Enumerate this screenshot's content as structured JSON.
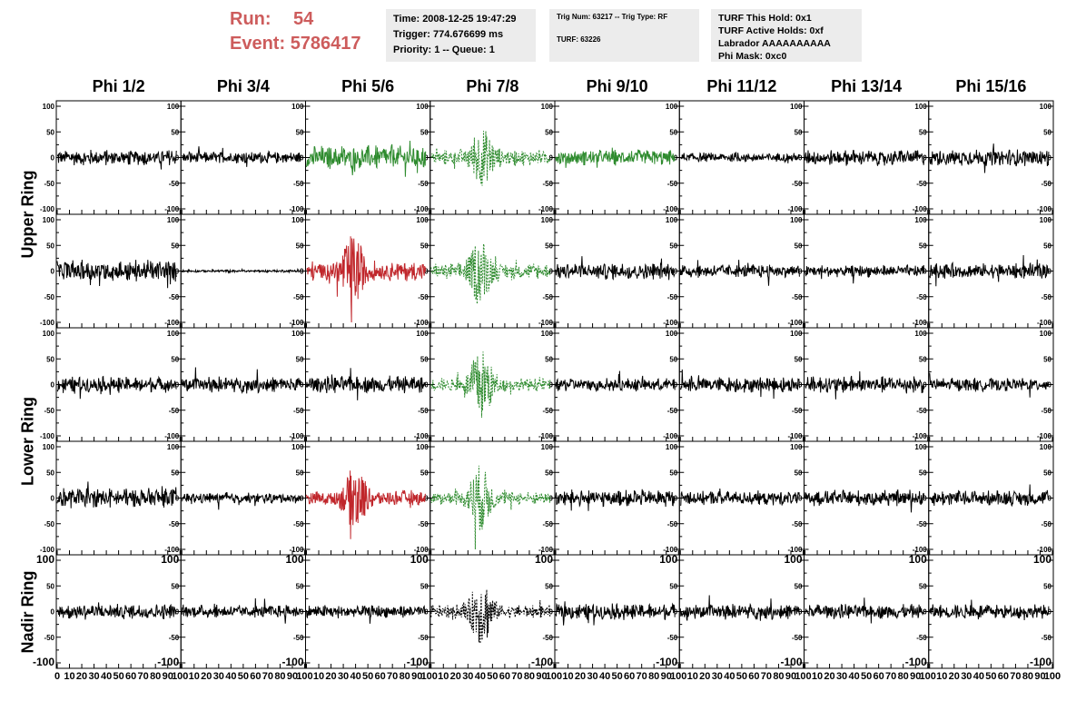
{
  "run": {
    "run_label": "Run:",
    "run_value": "54",
    "event_label": "Event:",
    "event_value": "5786417"
  },
  "info": {
    "time": "Time: 2008-12-25 19:47:29",
    "trigger": "Trigger: 774.676699 ms",
    "priority": "Priority: 1 -- Queue: 1",
    "trig_num": "Trig Num: 63217 -- Trig Type: RF",
    "turf": "TURF: 63226",
    "turf_hold": "TURF This Hold: 0x1",
    "turf_active": "TURF Active Holds: 0xf",
    "labrador": "Labrador AAAAAAAAAA",
    "phi_mask": "Phi Mask: 0xc0"
  },
  "columns": [
    "Phi 1/2",
    "Phi 3/4",
    "Phi 5/6",
    "Phi 7/8",
    "Phi 9/10",
    "Phi 11/12",
    "Phi 13/14",
    "Phi 15/16"
  ],
  "ring_labels": [
    {
      "text": "Upper Ring",
      "rows": [
        0,
        1
      ]
    },
    {
      "text": "Lower Ring",
      "rows": [
        2,
        3
      ]
    },
    {
      "text": "Nadir Ring",
      "rows": [
        4
      ]
    }
  ],
  "colors": {
    "default": "#000000",
    "green": "#2e8b2e",
    "red": "#c0262b",
    "run_text": "#cd5c5c",
    "info_bg": "#ececec"
  },
  "chart_data": {
    "type": "line",
    "title": "",
    "xlabel": "",
    "ylabel": "",
    "xlim": [
      0,
      100
    ],
    "ylim": [
      -100,
      100
    ],
    "xticks": [
      0,
      10,
      20,
      30,
      40,
      50,
      60,
      70,
      80,
      90,
      100
    ],
    "yticks": [
      -100,
      -50,
      0,
      50,
      100
    ],
    "rows": 5,
    "cols": 8,
    "samples_per_trace": 260,
    "trace_x_range": [
      0,
      97
    ],
    "panels": [
      [
        {
          "amp": 12,
          "color": "default"
        },
        {
          "amp": 9,
          "color": "default"
        },
        {
          "amp": 18,
          "color": "green"
        },
        {
          "amp": 12,
          "color": "green",
          "dashed": true,
          "burst": true,
          "burst_center": 42,
          "burst_amp": 45
        },
        {
          "amp": 12,
          "color": "green"
        },
        {
          "amp": 7,
          "color": "default"
        },
        {
          "amp": 12,
          "color": "default"
        },
        {
          "amp": 13,
          "color": "default"
        }
      ],
      [
        {
          "amp": 17,
          "color": "default"
        },
        {
          "amp": 2,
          "color": "default"
        },
        {
          "amp": 15,
          "color": "red",
          "burst": true,
          "burst_center": 38,
          "burst_amp": 55
        },
        {
          "amp": 12,
          "color": "green",
          "dashed": true,
          "burst": true,
          "burst_center": 40,
          "burst_amp": 50
        },
        {
          "amp": 13,
          "color": "default"
        },
        {
          "amp": 10,
          "color": "default"
        },
        {
          "amp": 9,
          "color": "default"
        },
        {
          "amp": 12,
          "color": "default"
        }
      ],
      [
        {
          "amp": 12,
          "color": "default"
        },
        {
          "amp": 12,
          "color": "default"
        },
        {
          "amp": 13,
          "color": "default"
        },
        {
          "amp": 10,
          "color": "green",
          "dashed": true,
          "burst": true,
          "burst_center": 41,
          "burst_amp": 60
        },
        {
          "amp": 10,
          "color": "default"
        },
        {
          "amp": 12,
          "color": "default"
        },
        {
          "amp": 13,
          "color": "default"
        },
        {
          "amp": 10,
          "color": "default"
        }
      ],
      [
        {
          "amp": 15,
          "color": "default"
        },
        {
          "amp": 8,
          "color": "default"
        },
        {
          "amp": 12,
          "color": "red",
          "burst": true,
          "burst_center": 40,
          "burst_amp": 50
        },
        {
          "amp": 10,
          "color": "green",
          "dashed": true,
          "burst": true,
          "burst_center": 40,
          "burst_amp": 55
        },
        {
          "amp": 13,
          "color": "default"
        },
        {
          "amp": 11,
          "color": "default"
        },
        {
          "amp": 12,
          "color": "default"
        },
        {
          "amp": 12,
          "color": "default"
        }
      ],
      [
        {
          "amp": 12,
          "color": "default"
        },
        {
          "amp": 10,
          "color": "default"
        },
        {
          "amp": 10,
          "color": "default"
        },
        {
          "amp": 10,
          "color": "default",
          "dashed": true,
          "burst": true,
          "burst_center": 41,
          "burst_amp": 55
        },
        {
          "amp": 12,
          "color": "default"
        },
        {
          "amp": 12,
          "color": "default"
        },
        {
          "amp": 11,
          "color": "default"
        },
        {
          "amp": 11,
          "color": "default"
        }
      ]
    ]
  }
}
